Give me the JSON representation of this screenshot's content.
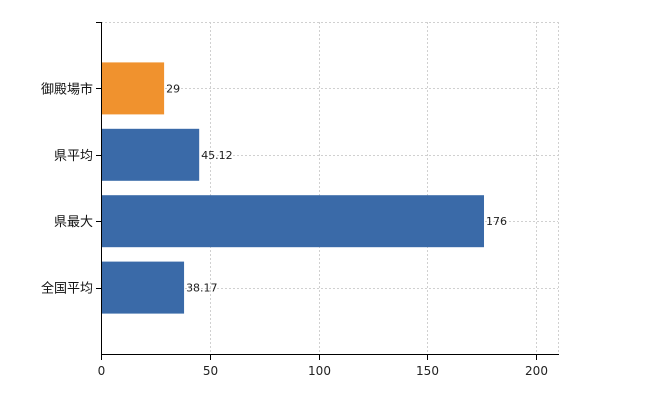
{
  "chart_data": {
    "type": "bar",
    "orientation": "horizontal",
    "categories": [
      "御殿場市",
      "県平均",
      "県最大",
      "全国平均"
    ],
    "values": [
      29,
      45.12,
      176,
      38.17
    ],
    "data_labels": [
      "29",
      "45.12",
      "176",
      "38.17"
    ],
    "xlim": [
      0,
      210
    ],
    "x_ticks": [
      0,
      50,
      100,
      150,
      200
    ],
    "grid": "dashed vertical and horizontal",
    "bar_colors": [
      "#f0922e",
      "#3a6aa8",
      "#3a6aa8",
      "#3a6aa8"
    ],
    "title": "",
    "xlabel": "",
    "ylabel": ""
  }
}
